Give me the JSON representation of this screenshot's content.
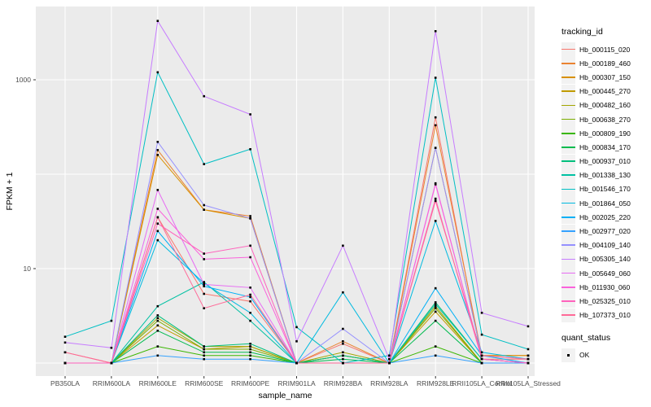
{
  "chart_data": {
    "type": "line",
    "title": "",
    "xlabel": "sample_name",
    "ylabel": "FPKM + 1",
    "y_scale": "log10",
    "y_tick_labels": [
      {
        "value": 10,
        "label": "10"
      },
      {
        "value": 1000,
        "label": "1000"
      }
    ],
    "y_gridlines": [
      1,
      10,
      100,
      1000
    ],
    "ylim": [
      0.75,
      5000
    ],
    "grid": "on",
    "legend_position": "right",
    "panel_bg": "#EBEBEB",
    "gridline_color": "#FFFFFF",
    "tick_text_color": "#4D4D4D",
    "point_shape": "square",
    "point_color": "#000000",
    "categories": [
      "PB350LA",
      "RRIM600LA",
      "RRIM600LE",
      "RRIM600SE",
      "RRIM600PE",
      "RRIM901LA",
      "RRIM928BA",
      "RRIM928LA",
      "RRIM928LE",
      "RRII105LA_Control",
      "RRII105LA_Stressed"
    ],
    "series": [
      {
        "name": "Hb_000115_020",
        "color": "#F8766D",
        "values": [
          1.3,
          1,
          35,
          5.4,
          4.5,
          1,
          1.6,
          1,
          400,
          1.1,
          1.1
        ]
      },
      {
        "name": "Hb_000189_460",
        "color": "#EA8331",
        "values": [
          1,
          1,
          180,
          42,
          36,
          1,
          1.7,
          1,
          330,
          1.2,
          1.2
        ]
      },
      {
        "name": "Hb_000307_150",
        "color": "#D89000",
        "values": [
          1,
          1,
          160,
          42,
          34,
          1,
          1,
          1,
          190,
          1.2,
          1.2
        ]
      },
      {
        "name": "Hb_000445_270",
        "color": "#C09B00",
        "values": [
          1,
          1,
          2.5,
          1.4,
          1.5,
          1,
          1.2,
          1,
          3.5,
          1,
          1
        ]
      },
      {
        "name": "Hb_000482_160",
        "color": "#A3A500",
        "values": [
          1,
          1,
          3,
          1.5,
          1.5,
          1,
          1.3,
          1,
          4,
          1,
          1
        ]
      },
      {
        "name": "Hb_000638_270",
        "color": "#7CAE00",
        "values": [
          1,
          1,
          2.8,
          1.4,
          1.4,
          1,
          1.2,
          1,
          3.8,
          1,
          1
        ]
      },
      {
        "name": "Hb_000809_190",
        "color": "#39B600",
        "values": [
          1,
          1,
          1.5,
          1.2,
          1.2,
          1,
          1,
          1,
          1.5,
          1,
          1
        ]
      },
      {
        "name": "Hb_000834_170",
        "color": "#00BB4E",
        "values": [
          1,
          1,
          2.2,
          1.3,
          1.3,
          1,
          1.1,
          1,
          2.8,
          1,
          1
        ]
      },
      {
        "name": "Hb_000937_010",
        "color": "#00BF7D",
        "values": [
          1,
          1,
          3.2,
          1.5,
          1.6,
          1,
          1.2,
          1,
          4.4,
          1.1,
          1
        ]
      },
      {
        "name": "Hb_001338_130",
        "color": "#00C1A3",
        "values": [
          1,
          1,
          4,
          7.2,
          2.8,
          1,
          1,
          1,
          4.2,
          1.1,
          1
        ]
      },
      {
        "name": "Hb_001546_170",
        "color": "#00BFC4",
        "values": [
          1.9,
          2.8,
          1200,
          128,
          184,
          2.4,
          1,
          1.2,
          1050,
          2,
          1.4
        ]
      },
      {
        "name": "Hb_001864_050",
        "color": "#00BAE0",
        "values": [
          1,
          1,
          20,
          7,
          3.4,
          1,
          5.6,
          1,
          32,
          1.3,
          1.1
        ]
      },
      {
        "name": "Hb_002025_220",
        "color": "#00B0F6",
        "values": [
          1,
          1,
          25,
          6.5,
          5,
          1,
          1,
          1,
          6.2,
          1.2,
          1
        ]
      },
      {
        "name": "Hb_002977_020",
        "color": "#35A2FF",
        "values": [
          1,
          1,
          1.2,
          1.1,
          1.1,
          1,
          1,
          1,
          1.2,
          1,
          1
        ]
      },
      {
        "name": "Hb_004109_140",
        "color": "#9590FF",
        "values": [
          1,
          1,
          220,
          47,
          34,
          1,
          2.3,
          1,
          190,
          1.2,
          1.1
        ]
      },
      {
        "name": "Hb_005305_140",
        "color": "#C77CFF",
        "values": [
          1.65,
          1.45,
          4200,
          670,
          430,
          1.7,
          17.5,
          1.1,
          3270,
          3.4,
          2.45
        ]
      },
      {
        "name": "Hb_005649_060",
        "color": "#E76BF3",
        "values": [
          1,
          1,
          68,
          6.8,
          6.3,
          1,
          1,
          1,
          80,
          1.1,
          1
        ]
      },
      {
        "name": "Hb_011930_060",
        "color": "#FA62DB",
        "values": [
          1,
          1,
          43,
          12.6,
          13.2,
          1,
          1,
          1,
          78,
          1.1,
          1
        ]
      },
      {
        "name": "Hb_025325_010",
        "color": "#FF62BC",
        "values": [
          1,
          1,
          30,
          14.4,
          17.5,
          1,
          1,
          1,
          55,
          1.1,
          1
        ]
      },
      {
        "name": "Hb_107373_010",
        "color": "#FF6A98",
        "values": [
          1.3,
          1,
          35,
          3.8,
          5.3,
          1,
          1,
          1,
          52,
          1.2,
          1.1
        ]
      }
    ]
  },
  "legend": {
    "tracking_title": "tracking_id",
    "quant_title": "quant_status",
    "quant_ok_label": "OK"
  }
}
